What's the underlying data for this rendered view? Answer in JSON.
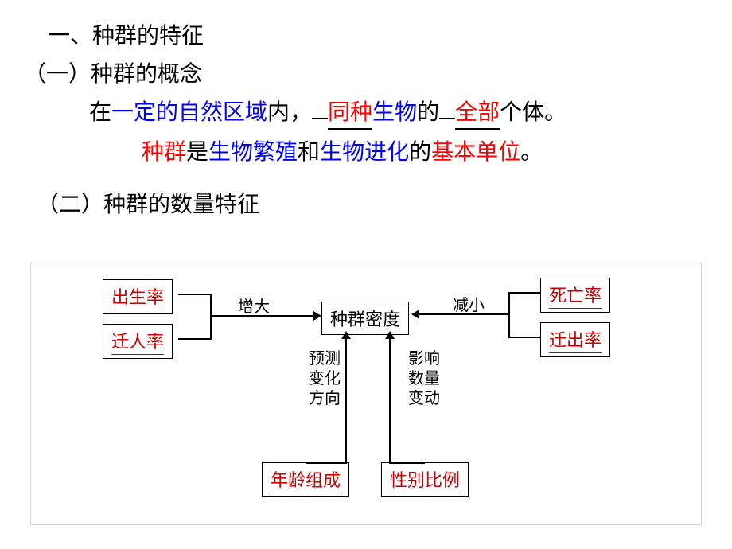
{
  "heading1": "一、种群的特征",
  "sub1": "（一）种群的概念",
  "line1": {
    "p1": "在",
    "p2_blue": "一定的自然区域",
    "p3": "内，",
    "gap1_width": 20,
    "fill1_red": "同种",
    "p4_blue": "生物",
    "p5": "的",
    "gap2_width": 20,
    "fill2_red": "全部",
    "p6": "个体。"
  },
  "line2": {
    "p1_red": "种群",
    "p2": "是",
    "p3_blue": "生物繁殖",
    "p4": "和",
    "p5_blue": "生物进化",
    "p6": "的",
    "p7_red": "基本单位",
    "p8": "。"
  },
  "sub2": "（二）种群的数量特征",
  "diagram": {
    "center": "种群密度",
    "left_top": "出生率",
    "left_bottom": "迁人率",
    "right_top": "死亡率",
    "right_bottom": "迁出率",
    "bottom_left": "年龄组成",
    "bottom_right": "性别比例",
    "edge_left": "增大",
    "edge_right": "减小",
    "edge_bl_1": "预",
    "edge_bl_2": "测",
    "edge_bl_3": "变",
    "edge_bl_4": "化",
    "edge_bl_5": "方",
    "edge_bl_6": "向",
    "edge_br_1": "影",
    "edge_br_2": "响",
    "edge_br_3": "数",
    "edge_br_4": "量",
    "edge_br_5": "变",
    "edge_br_6": "动",
    "node_border": "#000000",
    "node_text": "#cc0000",
    "label_text": "#000000"
  }
}
